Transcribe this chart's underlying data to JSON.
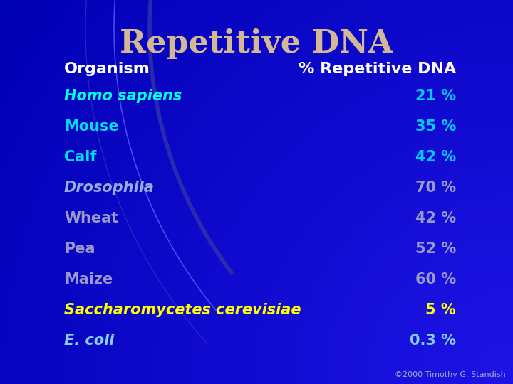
{
  "title": "Repetitive DNA",
  "title_color": "#D4B896",
  "title_fontsize": 32,
  "bg_color": "#0000BB",
  "bg_gradient": true,
  "header_organism": "Organism",
  "header_percent": "% Repetitive DNA",
  "header_color": "#FFFFFF",
  "header_fontsize": 16,
  "rows": [
    {
      "organism": "Homo sapiens",
      "percent": "21 %",
      "italic": true,
      "org_color": "#00FFEE",
      "pct_color": "#00CCFF"
    },
    {
      "organism": "Mouse",
      "percent": "35 %",
      "italic": false,
      "org_color": "#00DDFF",
      "pct_color": "#00CCFF"
    },
    {
      "organism": "Calf",
      "percent": "42 %",
      "italic": false,
      "org_color": "#00DDFF",
      "pct_color": "#00CCFF"
    },
    {
      "organism": "Drosophila",
      "percent": "70 %",
      "italic": true,
      "org_color": "#99AADD",
      "pct_color": "#9999CC"
    },
    {
      "organism": "Wheat",
      "percent": "42 %",
      "italic": false,
      "org_color": "#9999CC",
      "pct_color": "#9999CC"
    },
    {
      "organism": "Pea",
      "percent": "52 %",
      "italic": false,
      "org_color": "#9999CC",
      "pct_color": "#9999CC"
    },
    {
      "organism": "Maize",
      "percent": "60 %",
      "italic": false,
      "org_color": "#9999CC",
      "pct_color": "#9999CC"
    },
    {
      "organism": "Saccharomycetes cerevisiae",
      "percent": "5 %",
      "italic": true,
      "org_color": "#FFFF00",
      "pct_color": "#FFFF00"
    },
    {
      "organism": "E. coli",
      "percent": "0.3 %",
      "italic": true,
      "org_color": "#88CCEE",
      "pct_color": "#88CCEE"
    }
  ],
  "row_fontsize": 15,
  "footer": "©2000 Timothy G. Standish",
  "footer_color": "#AAAACC",
  "footer_fontsize": 8,
  "arc1_color": "#6666FF",
  "arc2_color": "#3333AA",
  "arc3_color": "#4444CC"
}
